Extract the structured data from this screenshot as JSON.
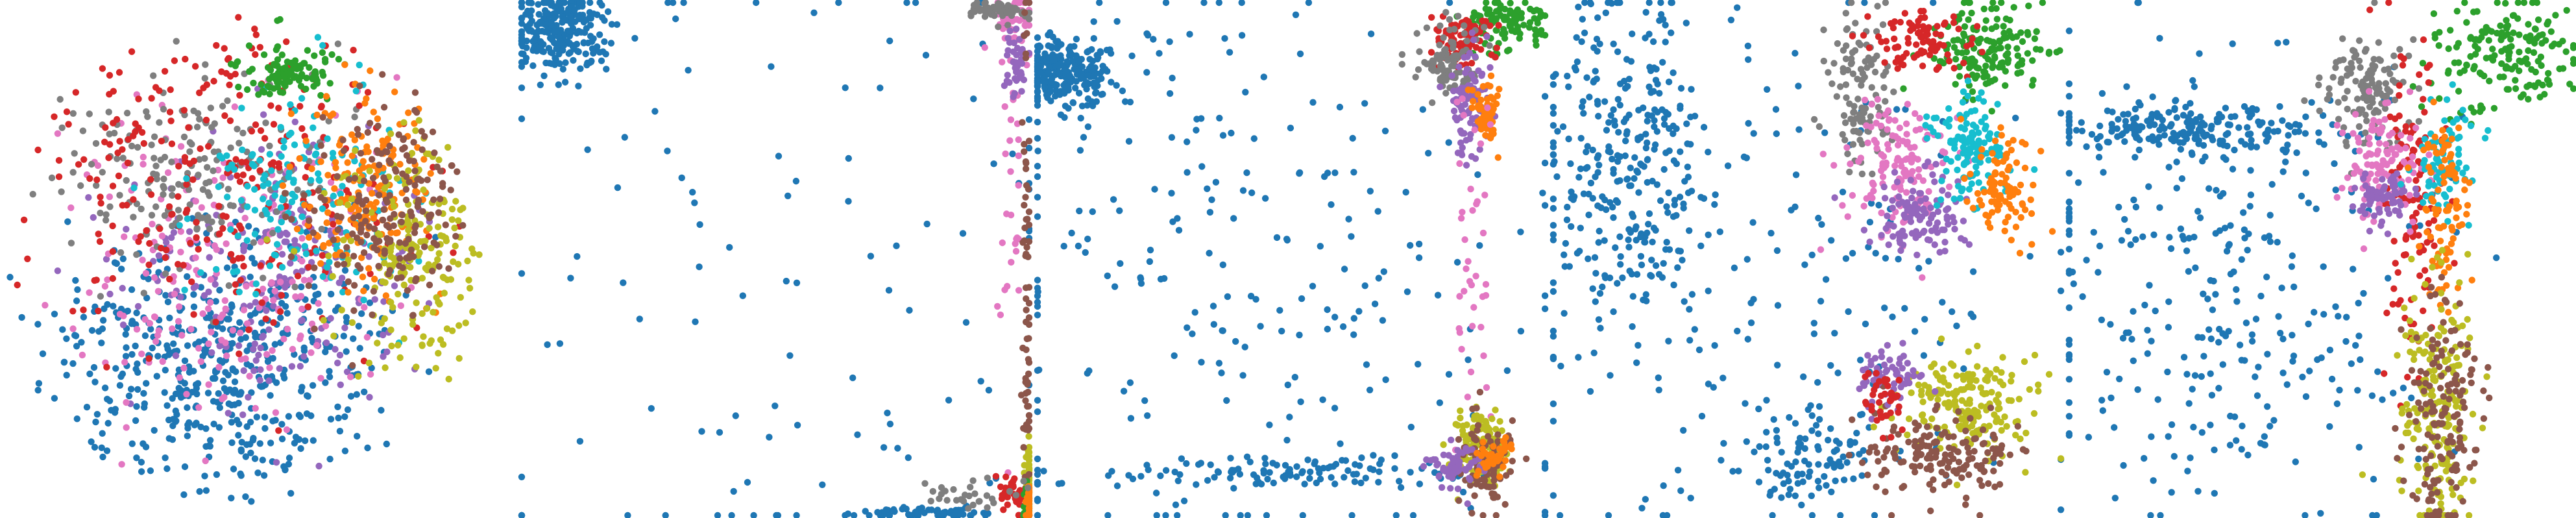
{
  "figure": {
    "panel_count": 5,
    "axes_visible": false,
    "background": "#ffffff"
  },
  "palette": {
    "c0": "#1f77b4",
    "c1": "#ff7f0e",
    "c2": "#2ca02c",
    "c3": "#d62728",
    "c4": "#9467bd",
    "c5": "#8c564b",
    "c6": "#e377c2",
    "c7": "#7f7f7f",
    "c8": "#bcbd22",
    "c9": "#17becf"
  },
  "chart_data": [
    {
      "type": "scatter",
      "title": "",
      "xlabel": "",
      "ylabel": "",
      "grid": false,
      "legend": "none",
      "xlim": [
        0,
        1
      ],
      "ylim": [
        0,
        1
      ],
      "layout": "disk",
      "clusters": [
        {
          "color": "#1f77b4",
          "center": [
            0.42,
            0.7
          ],
          "spread": [
            0.16,
            0.13
          ],
          "count": 520
        },
        {
          "color": "#9467bd",
          "center": [
            0.52,
            0.52
          ],
          "spread": [
            0.14,
            0.12
          ],
          "count": 220
        },
        {
          "color": "#e377c2",
          "center": [
            0.45,
            0.55
          ],
          "spread": [
            0.16,
            0.14
          ],
          "count": 200
        },
        {
          "color": "#7f7f7f",
          "center": [
            0.38,
            0.34
          ],
          "spread": [
            0.13,
            0.1
          ],
          "count": 200
        },
        {
          "color": "#d62728",
          "center": [
            0.42,
            0.32
          ],
          "spread": [
            0.22,
            0.18
          ],
          "count": 260
        },
        {
          "color": "#17becf",
          "center": [
            0.58,
            0.38
          ],
          "spread": [
            0.12,
            0.1
          ],
          "count": 160
        },
        {
          "color": "#2ca02c",
          "center": [
            0.56,
            0.14
          ],
          "spread": [
            0.05,
            0.025
          ],
          "count": 110
        },
        {
          "color": "#ff7f0e",
          "center": [
            0.72,
            0.38
          ],
          "spread": [
            0.06,
            0.09
          ],
          "count": 170
        },
        {
          "color": "#bcbd22",
          "center": [
            0.82,
            0.48
          ],
          "spread": [
            0.07,
            0.11
          ],
          "count": 200
        },
        {
          "color": "#8c564b",
          "center": [
            0.76,
            0.4
          ],
          "spread": [
            0.08,
            0.1
          ],
          "count": 190
        }
      ]
    },
    {
      "type": "scatter",
      "title": "",
      "xlabel": "",
      "ylabel": "",
      "grid": false,
      "legend": "none",
      "xlim": [
        0,
        1
      ],
      "ylim": [
        0,
        1
      ],
      "layout": "square-edges",
      "clusters": [
        {
          "color": "#1f77b4",
          "center": [
            0.08,
            0.06
          ],
          "spread": [
            0.05,
            0.04
          ],
          "count": 260
        },
        {
          "color": "#1f77b4",
          "center": [
            0.5,
            0.5
          ],
          "spread": [
            0.45,
            0.45
          ],
          "count": 130
        },
        {
          "color": "#1f77b4",
          "center": [
            0.8,
            0.99
          ],
          "spread": [
            0.06,
            0.005
          ],
          "count": 60
        },
        {
          "color": "#e377c2",
          "center": [
            0.97,
            0.05
          ],
          "spread": [
            0.02,
            0.03
          ],
          "count": 50
        },
        {
          "color": "#e377c2",
          "center": [
            0.96,
            0.4
          ],
          "spread": [
            0.01,
            0.2
          ],
          "count": 30
        },
        {
          "color": "#7f7f7f",
          "center": [
            0.93,
            0.02
          ],
          "spread": [
            0.03,
            0.01
          ],
          "count": 50
        },
        {
          "color": "#9467bd",
          "center": [
            0.97,
            0.12
          ],
          "spread": [
            0.01,
            0.04
          ],
          "count": 40
        },
        {
          "color": "#d62728",
          "center": [
            0.96,
            0.95
          ],
          "spread": [
            0.015,
            0.02
          ],
          "count": 40
        },
        {
          "color": "#bcbd22",
          "center": [
            0.995,
            0.93
          ],
          "spread": [
            0.004,
            0.04
          ],
          "count": 60
        },
        {
          "color": "#8c564b",
          "center": [
            0.99,
            0.6
          ],
          "spread": [
            0.005,
            0.3
          ],
          "count": 80
        },
        {
          "color": "#2ca02c",
          "center": [
            0.99,
            0.97
          ],
          "spread": [
            0.004,
            0.02
          ],
          "count": 30
        },
        {
          "color": "#ff7f0e",
          "center": [
            0.995,
            0.97
          ],
          "spread": [
            0.003,
            0.02
          ],
          "count": 30
        },
        {
          "color": "#7f7f7f",
          "center": [
            0.88,
            0.95
          ],
          "spread": [
            0.04,
            0.02
          ],
          "count": 30
        }
      ]
    },
    {
      "type": "scatter",
      "title": "",
      "xlabel": "",
      "ylabel": "",
      "grid": false,
      "legend": "none",
      "xlim": [
        0,
        1
      ],
      "ylim": [
        0,
        1
      ],
      "layout": "rect-corners",
      "clusters": [
        {
          "color": "#1f77b4",
          "center": [
            0.06,
            0.14
          ],
          "spread": [
            0.05,
            0.035
          ],
          "count": 240
        },
        {
          "color": "#1f77b4",
          "center": [
            0.4,
            0.55
          ],
          "spread": [
            0.28,
            0.3
          ],
          "count": 230
        },
        {
          "color": "#1f77b4",
          "center": [
            0.55,
            0.91
          ],
          "spread": [
            0.25,
            0.015
          ],
          "count": 120
        },
        {
          "color": "#2ca02c",
          "center": [
            0.92,
            0.05
          ],
          "spread": [
            0.04,
            0.025
          ],
          "count": 110
        },
        {
          "color": "#d62728",
          "center": [
            0.83,
            0.08
          ],
          "spread": [
            0.03,
            0.03
          ],
          "count": 90
        },
        {
          "color": "#7f7f7f",
          "center": [
            0.81,
            0.12
          ],
          "spread": [
            0.03,
            0.04
          ],
          "count": 100
        },
        {
          "color": "#9467bd",
          "center": [
            0.85,
            0.2
          ],
          "spread": [
            0.02,
            0.05
          ],
          "count": 100
        },
        {
          "color": "#ff7f0e",
          "center": [
            0.88,
            0.22
          ],
          "spread": [
            0.015,
            0.03
          ],
          "count": 60
        },
        {
          "color": "#e377c2",
          "center": [
            0.85,
            0.5
          ],
          "spread": [
            0.02,
            0.2
          ],
          "count": 40
        },
        {
          "color": "#bcbd22",
          "center": [
            0.87,
            0.86
          ],
          "spread": [
            0.025,
            0.035
          ],
          "count": 130
        },
        {
          "color": "#8c564b",
          "center": [
            0.88,
            0.9
          ],
          "spread": [
            0.03,
            0.04
          ],
          "count": 110
        },
        {
          "color": "#9467bd",
          "center": [
            0.82,
            0.9
          ],
          "spread": [
            0.03,
            0.02
          ],
          "count": 60
        },
        {
          "color": "#ff7f0e",
          "center": [
            0.9,
            0.88
          ],
          "spread": [
            0.02,
            0.02
          ],
          "count": 40
        }
      ]
    },
    {
      "type": "scatter",
      "title": "",
      "xlabel": "",
      "ylabel": "",
      "grid": false,
      "legend": "none",
      "xlim": [
        0,
        1
      ],
      "ylim": [
        0,
        1
      ],
      "layout": "rings",
      "clusters": [
        {
          "color": "#1f77b4",
          "center": [
            0.14,
            0.3
          ],
          "spread": [
            0.08,
            0.16
          ],
          "count": 300
        },
        {
          "color": "#1f77b4",
          "center": [
            0.42,
            0.55
          ],
          "spread": [
            0.3,
            0.28
          ],
          "count": 180
        },
        {
          "color": "#1f77b4",
          "center": [
            0.52,
            0.88
          ],
          "spread": [
            0.06,
            0.05
          ],
          "count": 100
        },
        {
          "color": "#2ca02c",
          "center": [
            0.85,
            0.1
          ],
          "spread": [
            0.06,
            0.05
          ],
          "count": 160
        },
        {
          "color": "#7f7f7f",
          "center": [
            0.6,
            0.18
          ],
          "spread": [
            0.03,
            0.08
          ],
          "count": 110
        },
        {
          "color": "#d62728",
          "center": [
            0.72,
            0.08
          ],
          "spread": [
            0.05,
            0.03
          ],
          "count": 90
        },
        {
          "color": "#e377c2",
          "center": [
            0.68,
            0.32
          ],
          "spread": [
            0.05,
            0.06
          ],
          "count": 140
        },
        {
          "color": "#9467bd",
          "center": [
            0.72,
            0.42
          ],
          "spread": [
            0.05,
            0.04
          ],
          "count": 110
        },
        {
          "color": "#17becf",
          "center": [
            0.82,
            0.28
          ],
          "spread": [
            0.04,
            0.06
          ],
          "count": 120
        },
        {
          "color": "#ff7f0e",
          "center": [
            0.88,
            0.36
          ],
          "spread": [
            0.03,
            0.05
          ],
          "count": 90
        },
        {
          "color": "#bcbd22",
          "center": [
            0.8,
            0.78
          ],
          "spread": [
            0.07,
            0.05
          ],
          "count": 180
        },
        {
          "color": "#8c564b",
          "center": [
            0.74,
            0.88
          ],
          "spread": [
            0.08,
            0.04
          ],
          "count": 160
        },
        {
          "color": "#9467bd",
          "center": [
            0.66,
            0.72
          ],
          "spread": [
            0.03,
            0.03
          ],
          "count": 60
        },
        {
          "color": "#d62728",
          "center": [
            0.65,
            0.78
          ],
          "spread": [
            0.02,
            0.03
          ],
          "count": 40
        }
      ]
    },
    {
      "type": "scatter",
      "title": "",
      "xlabel": "",
      "ylabel": "",
      "grid": false,
      "legend": "none",
      "xlim": [
        0,
        1
      ],
      "ylim": [
        0,
        1
      ],
      "layout": "t-shape",
      "clusters": [
        {
          "color": "#1f77b4",
          "center": [
            0.22,
            0.25
          ],
          "spread": [
            0.14,
            0.025
          ],
          "count": 200
        },
        {
          "color": "#1f77b4",
          "center": [
            0.3,
            0.55
          ],
          "spread": [
            0.2,
            0.22
          ],
          "count": 300
        },
        {
          "color": "#2ca02c",
          "center": [
            0.86,
            0.1
          ],
          "spread": [
            0.07,
            0.06
          ],
          "count": 170
        },
        {
          "color": "#7f7f7f",
          "center": [
            0.58,
            0.18
          ],
          "spread": [
            0.04,
            0.05
          ],
          "count": 120
        },
        {
          "color": "#d62728",
          "center": [
            0.68,
            0.4
          ],
          "spread": [
            0.03,
            0.15
          ],
          "count": 120
        },
        {
          "color": "#e377c2",
          "center": [
            0.62,
            0.32
          ],
          "spread": [
            0.04,
            0.05
          ],
          "count": 110
        },
        {
          "color": "#9467bd",
          "center": [
            0.62,
            0.38
          ],
          "spread": [
            0.03,
            0.03
          ],
          "count": 70
        },
        {
          "color": "#17becf",
          "center": [
            0.74,
            0.3
          ],
          "spread": [
            0.03,
            0.05
          ],
          "count": 80
        },
        {
          "color": "#ff7f0e",
          "center": [
            0.74,
            0.42
          ],
          "spread": [
            0.025,
            0.09
          ],
          "count": 90
        },
        {
          "color": "#bcbd22",
          "center": [
            0.73,
            0.78
          ],
          "spread": [
            0.035,
            0.12
          ],
          "count": 200
        },
        {
          "color": "#8c564b",
          "center": [
            0.74,
            0.8
          ],
          "spread": [
            0.035,
            0.12
          ],
          "count": 150
        }
      ]
    }
  ]
}
